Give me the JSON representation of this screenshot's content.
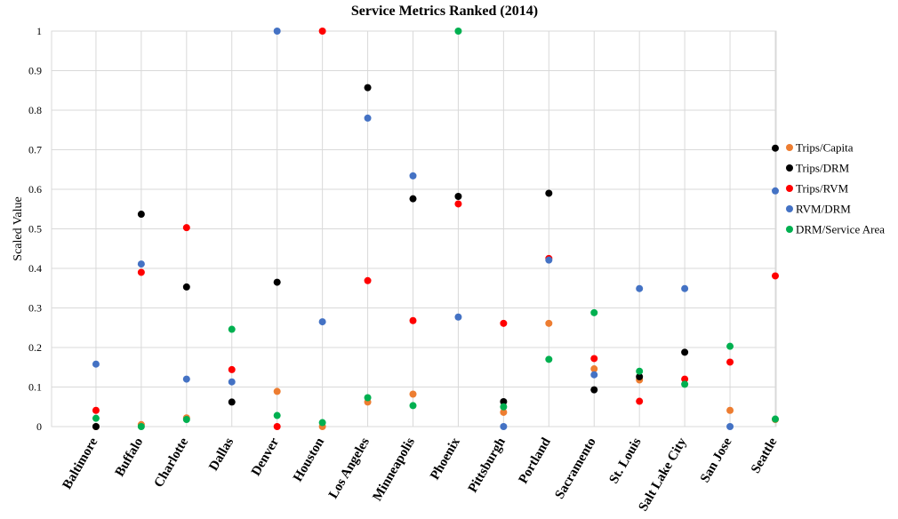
{
  "chart_data": {
    "type": "scatter",
    "title": "Service Metrics Ranked (2014)",
    "ylabel": "Scaled Value",
    "xlabel": "",
    "ylim": [
      0,
      1
    ],
    "yticks": [
      {
        "value": 0,
        "label": "0"
      },
      {
        "value": 0.1,
        "label": "0.1"
      },
      {
        "value": 0.2,
        "label": "0.2"
      },
      {
        "value": 0.3,
        "label": "0.3"
      },
      {
        "value": 0.4,
        "label": "0.4"
      },
      {
        "value": 0.5,
        "label": "0.5"
      },
      {
        "value": 0.6,
        "label": "0.6"
      },
      {
        "value": 0.7,
        "label": "0.7"
      },
      {
        "value": 0.8,
        "label": "0.8"
      },
      {
        "value": 0.9,
        "label": "0.9"
      },
      {
        "value": 1,
        "label": "1"
      }
    ],
    "grid": true,
    "legend_position": "right",
    "categories": [
      "Baltimore",
      "Buffalo",
      "Charlotte",
      "Dallas",
      "Denver",
      "Houston",
      "Los Angeles",
      "Minneapolis",
      "Phoenix",
      "Pittsburgh",
      "Portland",
      "Sacramento",
      "St. Louis",
      "Salt Lake City",
      "San Jose",
      "Seattle"
    ],
    "series": [
      {
        "name": "Trips/Capita",
        "color": "#ed7d31",
        "values": [
          0.0,
          0.005,
          0.022,
          null,
          0.089,
          0.0,
          0.062,
          0.082,
          null,
          0.036,
          0.261,
          0.146,
          0.118,
          null,
          0.041,
          0.018
        ]
      },
      {
        "name": "Trips/DRM",
        "color": "#000000",
        "values": [
          0.0,
          0.537,
          0.353,
          0.062,
          0.365,
          null,
          0.857,
          0.576,
          0.582,
          0.063,
          0.59,
          0.093,
          0.126,
          0.188,
          null,
          0.704
        ]
      },
      {
        "name": "Trips/RVM",
        "color": "#ff0000",
        "values": [
          0.041,
          0.39,
          0.503,
          0.144,
          0.0,
          1.0,
          0.369,
          0.268,
          0.563,
          0.261,
          0.425,
          0.172,
          0.064,
          0.12,
          0.163,
          0.381
        ]
      },
      {
        "name": "RVM/DRM",
        "color": "#4472c4",
        "values": [
          0.158,
          0.411,
          0.12,
          0.113,
          1.0,
          0.265,
          0.78,
          0.634,
          0.277,
          0.0,
          0.421,
          0.131,
          0.349,
          0.349,
          0.0,
          0.596
        ]
      },
      {
        "name": "DRM/Service Area",
        "color": "#00b050",
        "values": [
          0.021,
          0.0,
          0.018,
          0.246,
          0.028,
          0.01,
          0.073,
          0.053,
          1.0,
          0.05,
          0.17,
          0.288,
          0.14,
          0.107,
          0.203,
          0.019
        ]
      }
    ]
  }
}
